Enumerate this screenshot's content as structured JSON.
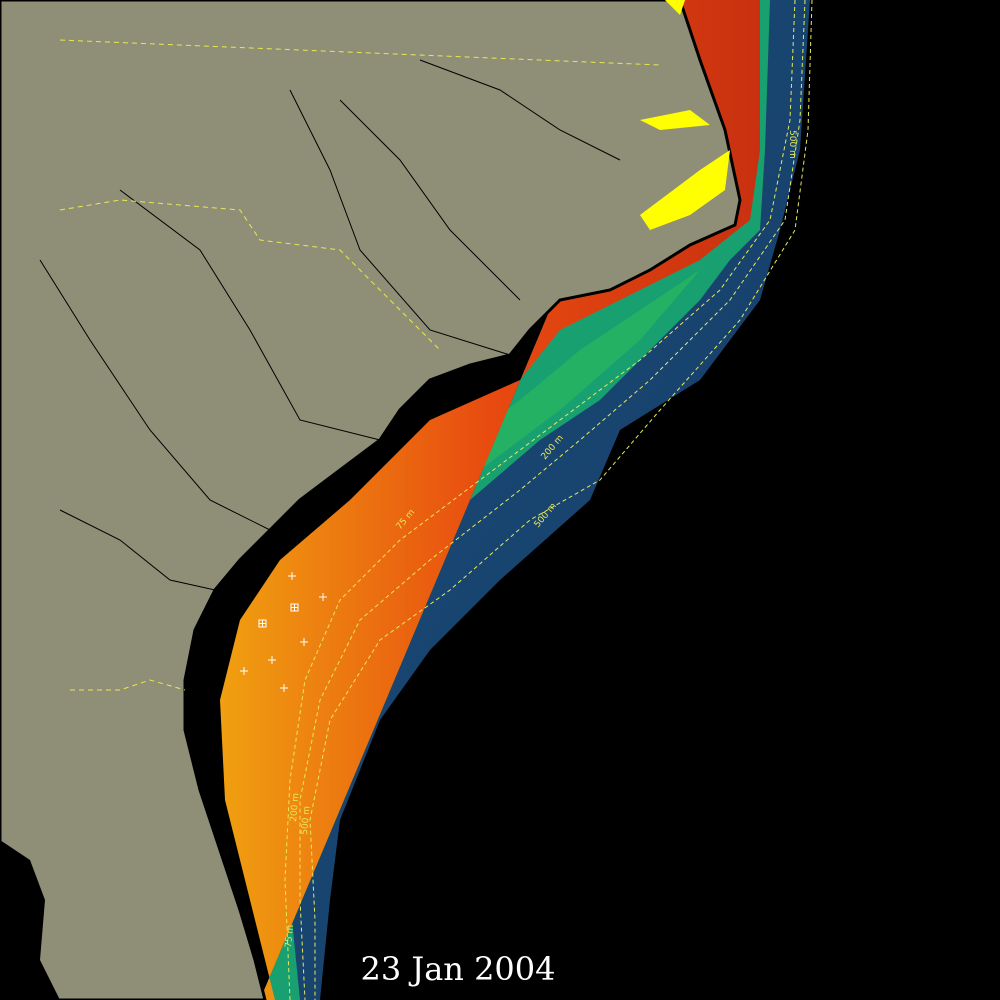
{
  "date": "23 Jan 2004",
  "isobath_labels": [
    "500 m",
    "75 m",
    "200 m",
    "500 m",
    "200 m",
    "500 m",
    "75 m"
  ]
}
